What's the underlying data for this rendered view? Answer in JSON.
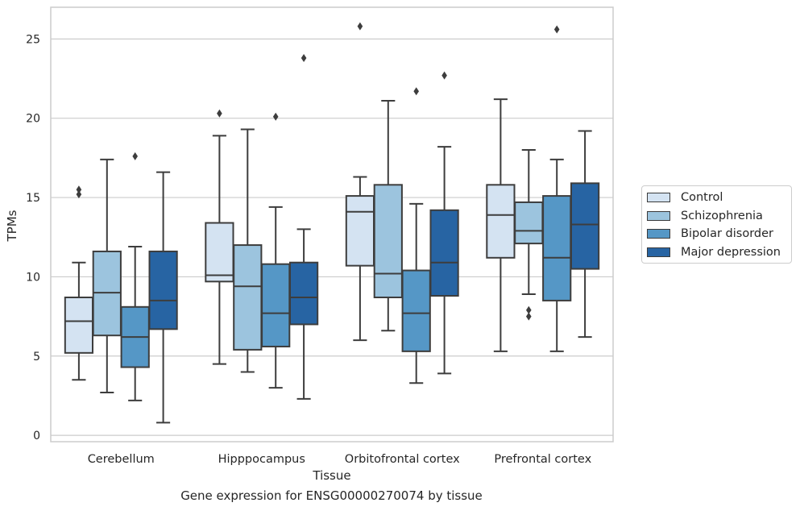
{
  "chart_data": {
    "type": "boxplot",
    "title": "",
    "caption": "Gene expression for ENSG00000270074 by tissue",
    "xlabel": "Tissue",
    "ylabel": "TPMs",
    "ylim": [
      -0.4,
      27.0
    ],
    "yticks": [
      0,
      5,
      10,
      15,
      20,
      25
    ],
    "grid": "horizontal",
    "legend_position": "right-outside",
    "categories": [
      "Cerebellum",
      "Hipppocampus",
      "Orbitofrontal cortex",
      "Prefrontal cortex"
    ],
    "series": [
      {
        "name": "Control",
        "color": "#d4e3f2",
        "boxes": [
          {
            "whislo": 3.5,
            "q1": 5.2,
            "med": 7.2,
            "q3": 8.7,
            "whishi": 10.9,
            "fliers": [
              15.2,
              15.5
            ]
          },
          {
            "whislo": 4.5,
            "q1": 9.7,
            "med": 10.1,
            "q3": 13.4,
            "whishi": 18.9,
            "fliers": [
              20.3
            ]
          },
          {
            "whislo": 6.0,
            "q1": 10.7,
            "med": 14.1,
            "q3": 15.1,
            "whishi": 16.3,
            "fliers": [
              25.8
            ]
          },
          {
            "whislo": 5.3,
            "q1": 11.2,
            "med": 13.9,
            "q3": 15.8,
            "whishi": 21.2,
            "fliers": []
          }
        ]
      },
      {
        "name": "Schizophrenia",
        "color": "#9cc4de",
        "boxes": [
          {
            "whislo": 2.7,
            "q1": 6.3,
            "med": 9.0,
            "q3": 11.6,
            "whishi": 17.4,
            "fliers": []
          },
          {
            "whislo": 4.0,
            "q1": 5.4,
            "med": 9.4,
            "q3": 12.0,
            "whishi": 19.3,
            "fliers": []
          },
          {
            "whislo": 6.6,
            "q1": 8.7,
            "med": 10.2,
            "q3": 15.8,
            "whishi": 21.1,
            "fliers": []
          },
          {
            "whislo": 8.9,
            "q1": 12.1,
            "med": 12.9,
            "q3": 14.7,
            "whishi": 18.0,
            "fliers": [
              7.5,
              7.9
            ]
          }
        ]
      },
      {
        "name": "Bipolar disorder",
        "color": "#5597c6",
        "boxes": [
          {
            "whislo": 2.2,
            "q1": 4.3,
            "med": 6.2,
            "q3": 8.1,
            "whishi": 11.9,
            "fliers": [
              17.6
            ]
          },
          {
            "whislo": 3.0,
            "q1": 5.6,
            "med": 7.7,
            "q3": 10.8,
            "whishi": 14.4,
            "fliers": [
              20.1
            ]
          },
          {
            "whislo": 3.3,
            "q1": 5.3,
            "med": 7.7,
            "q3": 10.4,
            "whishi": 14.6,
            "fliers": [
              21.7
            ]
          },
          {
            "whislo": 5.3,
            "q1": 8.5,
            "med": 11.2,
            "q3": 15.1,
            "whishi": 17.4,
            "fliers": [
              25.6
            ]
          }
        ]
      },
      {
        "name": "Major depression",
        "color": "#2764a3",
        "boxes": [
          {
            "whislo": 0.8,
            "q1": 6.7,
            "med": 8.5,
            "q3": 11.6,
            "whishi": 16.6,
            "fliers": []
          },
          {
            "whislo": 2.3,
            "q1": 7.0,
            "med": 8.7,
            "q3": 10.9,
            "whishi": 13.0,
            "fliers": [
              23.8
            ]
          },
          {
            "whislo": 3.9,
            "q1": 8.8,
            "med": 10.9,
            "q3": 14.2,
            "whishi": 18.2,
            "fliers": [
              22.7
            ]
          },
          {
            "whislo": 6.2,
            "q1": 10.5,
            "med": 13.3,
            "q3": 15.9,
            "whishi": 19.2,
            "fliers": []
          }
        ]
      }
    ]
  }
}
